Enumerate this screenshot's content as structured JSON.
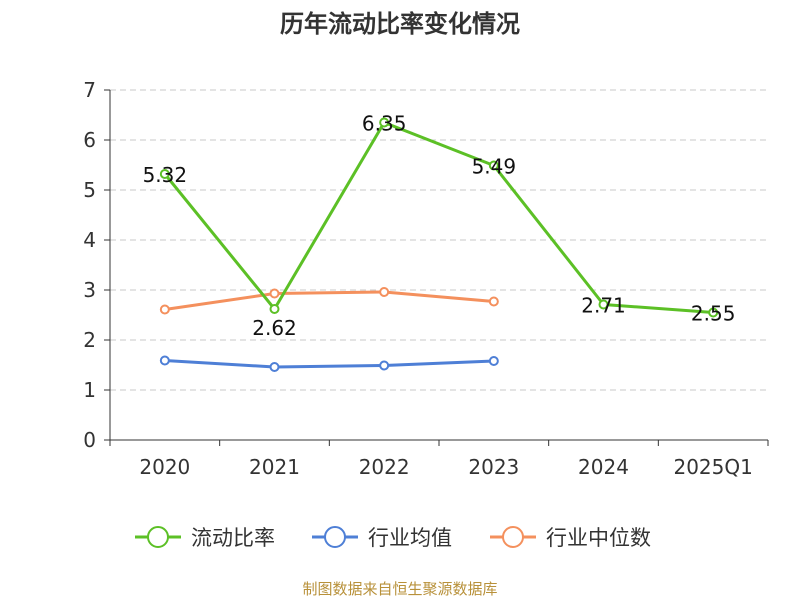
{
  "title": "历年流动比率变化情况",
  "footer": "制图数据来自恒生聚源数据库",
  "chart_data": {
    "type": "line",
    "categories": [
      "2020",
      "2021",
      "2022",
      "2023",
      "2024",
      "2025Q1"
    ],
    "ylim": [
      0,
      7
    ],
    "yticks": [
      0,
      1,
      2,
      3,
      4,
      5,
      6,
      7
    ],
    "grid": true,
    "legend_position": "bottom",
    "series": [
      {
        "name": "流动比率",
        "color": "#5cc026",
        "values": [
          5.32,
          2.62,
          6.35,
          5.49,
          2.71,
          2.55
        ],
        "labels": [
          "5.32",
          "2.62",
          "6.35",
          "5.49",
          "2.71",
          "2.55"
        ]
      },
      {
        "name": "行业均值",
        "color": "#4e7fd6",
        "values": [
          1.59,
          1.46,
          1.49,
          1.58,
          null,
          null
        ]
      },
      {
        "name": "行业中位数",
        "color": "#f4905d",
        "values": [
          2.61,
          2.93,
          2.96,
          2.77,
          null,
          null
        ]
      }
    ]
  }
}
